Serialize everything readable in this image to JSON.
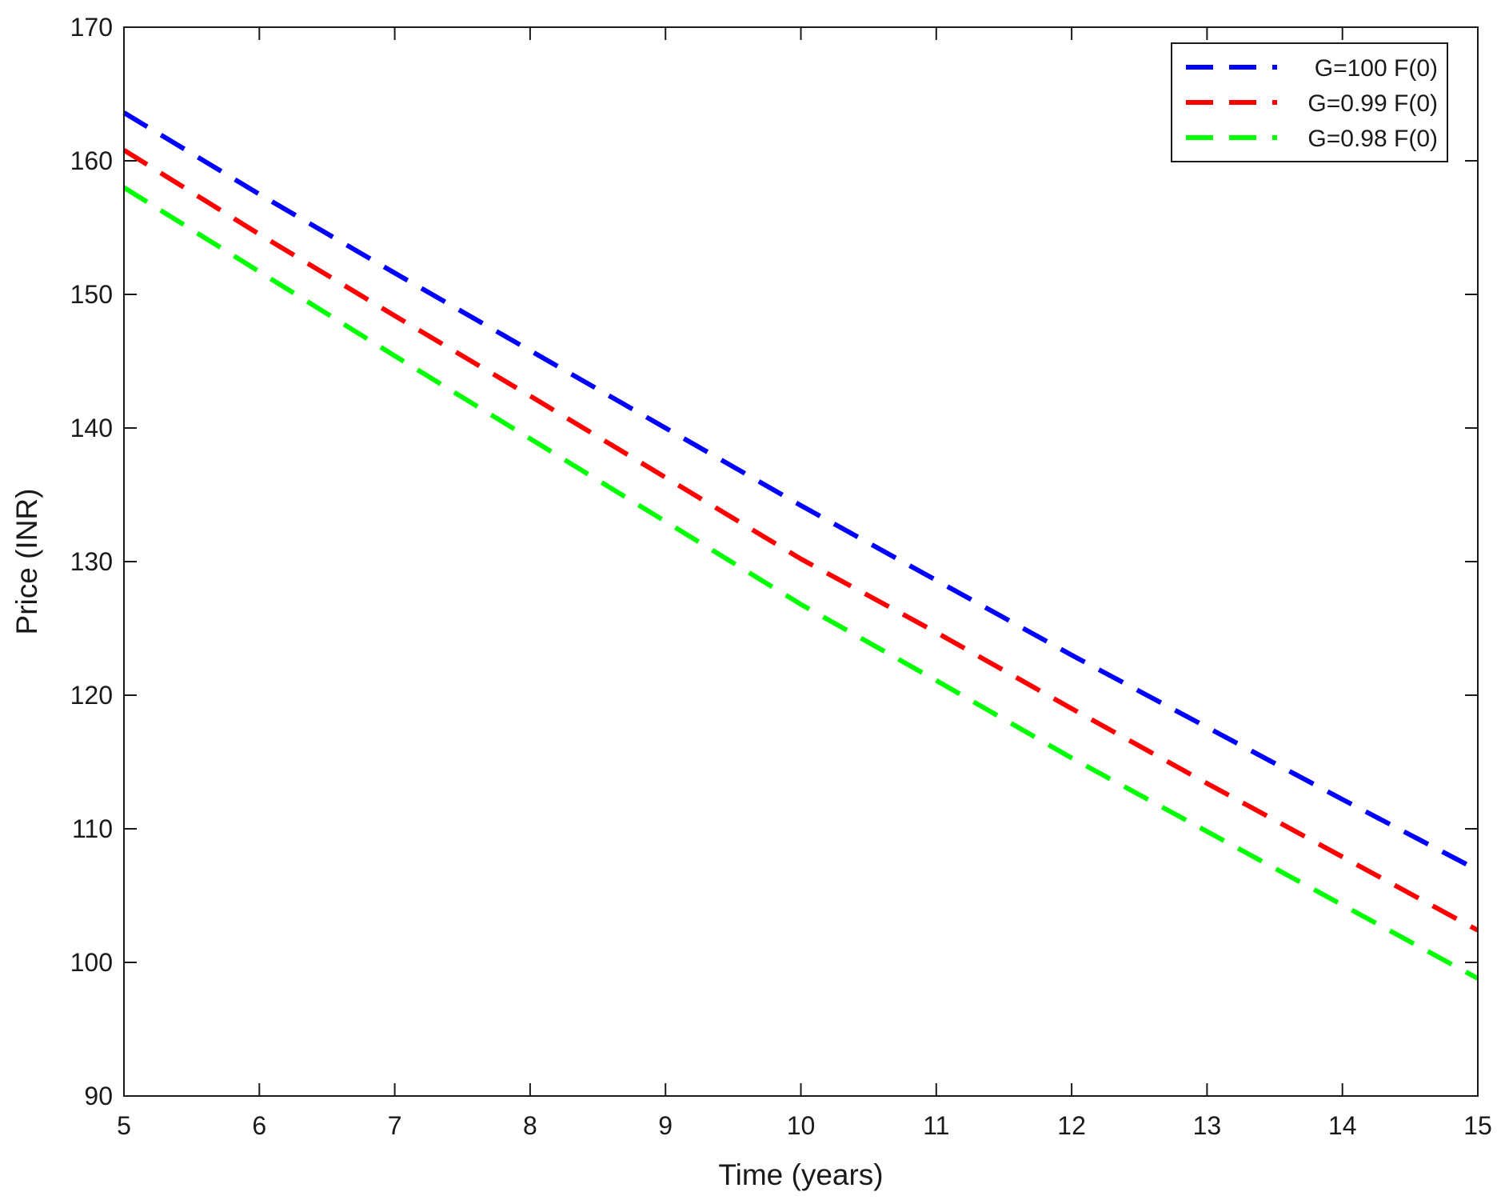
{
  "chart_data": {
    "type": "line",
    "xlabel": "Time (years)",
    "ylabel": "Price (INR)",
    "xlim": [
      5,
      15
    ],
    "ylim": [
      90,
      170
    ],
    "xticks": [
      "5",
      "6",
      "7",
      "8",
      "9",
      "10",
      "11",
      "12",
      "13",
      "14",
      "15"
    ],
    "yticks": [
      "90",
      "100",
      "110",
      "120",
      "130",
      "140",
      "150",
      "160",
      "170"
    ],
    "grid": false,
    "legend_position": "top-right",
    "line_style": "dashed",
    "x": [
      5,
      6,
      7,
      8,
      9,
      10,
      11,
      12,
      13,
      14,
      15
    ],
    "series": [
      {
        "name": "G=100 F(0)",
        "color": "#0000ff",
        "values": [
          163.6,
          157.5,
          151.6,
          145.8,
          140.0,
          134.2,
          128.6,
          123.0,
          117.6,
          112.2,
          106.9
        ]
      },
      {
        "name": "G=0.99 F(0)",
        "color": "#ff0000",
        "values": [
          160.8,
          154.5,
          148.4,
          142.4,
          136.3,
          130.2,
          124.7,
          119.0,
          113.4,
          107.9,
          102.4
        ]
      },
      {
        "name": "G=0.98 F(0)",
        "color": "#00ff00",
        "values": [
          158.0,
          151.7,
          145.4,
          139.2,
          133.0,
          126.8,
          121.1,
          115.3,
          109.8,
          104.3,
          98.8
        ]
      }
    ]
  }
}
